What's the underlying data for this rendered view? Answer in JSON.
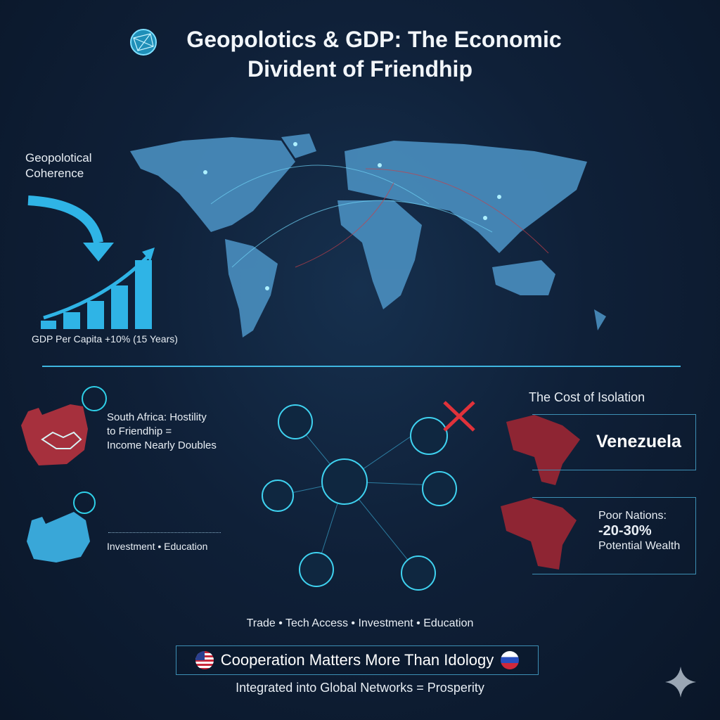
{
  "header": {
    "title_line1": "Geopolotics & GDP: The Economic",
    "title_line2": "Divident of Friendhip",
    "logo_icon": "globe-network-icon"
  },
  "left_panel": {
    "label": "Geopolotical Coherence",
    "chart_caption": "GDP Per Capita +10% (15 Years)"
  },
  "south_africa": {
    "headline_line1": "South Africa: Hostility",
    "headline_line2": "to Friendhip =",
    "headline_line3": "Income Nearly Doubles",
    "caption": "Investment • Education"
  },
  "isolation": {
    "heading": "The Cost of Isolation",
    "country": "Venezuela",
    "stat_line1": "Poor Nations:",
    "stat_value": "-20-30%",
    "stat_line3": "Potential Wealth"
  },
  "footer": {
    "pillars": "Trade • Tech Access • Investment • Education",
    "banner": "Cooperation Matters More Than Idology",
    "tagline": "Integrated into Global Networks = Prosperity"
  },
  "colors": {
    "background": "#0f2038",
    "accent_blue": "#2fb4e6",
    "map_blue": "#4a8fc0",
    "isolation_red": "#8e2533",
    "x_red": "#e0323a"
  }
}
